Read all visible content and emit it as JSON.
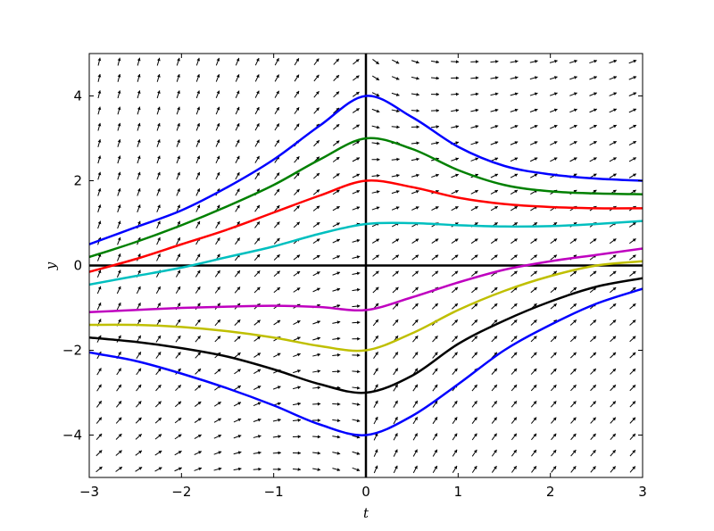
{
  "chart_data": {
    "type": "line",
    "title": "",
    "xlabel": "t",
    "ylabel": "y",
    "xlim": [
      -3,
      3
    ],
    "ylim": [
      -5,
      5
    ],
    "grid": false,
    "x_ticks": [
      -3,
      -2,
      -1,
      0,
      1,
      2,
      3
    ],
    "y_ticks": [
      -4,
      -2,
      0,
      2,
      4
    ],
    "x_tick_labels": [
      "−3",
      "−2",
      "−1",
      "0",
      "1",
      "2",
      "3"
    ],
    "y_tick_labels": [
      "−4",
      "−2",
      "0",
      "2",
      "4"
    ],
    "reference_lines": {
      "x": 0,
      "y": 0,
      "color": "#000000"
    },
    "direction_field": {
      "present": true,
      "t_range": [
        -3,
        3
      ],
      "y_range": [
        -5,
        5
      ],
      "arrow_color": "#000000"
    },
    "x": [
      -3,
      -2.5,
      -2,
      -1.5,
      -1,
      -0.5,
      0,
      0.5,
      1,
      1.5,
      2,
      2.5,
      3
    ],
    "series": [
      {
        "color": "#0000ff",
        "values": [
          0.5,
          0.9,
          1.3,
          1.85,
          2.5,
          3.3,
          4.0,
          3.5,
          2.8,
          2.35,
          2.15,
          2.05,
          2.0
        ]
      },
      {
        "color": "#008000",
        "values": [
          0.2,
          0.55,
          0.95,
          1.4,
          1.9,
          2.5,
          3.0,
          2.75,
          2.25,
          1.9,
          1.75,
          1.7,
          1.68
        ]
      },
      {
        "color": "#ff0000",
        "values": [
          -0.15,
          0.15,
          0.5,
          0.85,
          1.25,
          1.65,
          2.0,
          1.85,
          1.6,
          1.45,
          1.38,
          1.35,
          1.35
        ]
      },
      {
        "color": "#00bfbf",
        "values": [
          -0.45,
          -0.25,
          -0.05,
          0.2,
          0.45,
          0.75,
          0.98,
          1.0,
          0.95,
          0.92,
          0.93,
          0.98,
          1.05
        ]
      },
      {
        "color": "#bf00bf",
        "values": [
          -1.1,
          -1.05,
          -1.0,
          -0.97,
          -0.95,
          -0.98,
          -1.05,
          -0.75,
          -0.4,
          -0.1,
          0.1,
          0.25,
          0.4
        ]
      },
      {
        "color": "#bfbf00",
        "values": [
          -1.4,
          -1.4,
          -1.45,
          -1.55,
          -1.7,
          -1.9,
          -2.0,
          -1.6,
          -1.05,
          -0.6,
          -0.25,
          0.0,
          0.1
        ]
      },
      {
        "color": "#000000",
        "values": [
          -1.7,
          -1.8,
          -1.95,
          -2.15,
          -2.45,
          -2.8,
          -3.0,
          -2.6,
          -1.85,
          -1.3,
          -0.85,
          -0.5,
          -0.3
        ]
      },
      {
        "color": "#0000ff",
        "values": [
          -2.05,
          -2.25,
          -2.55,
          -2.9,
          -3.3,
          -3.75,
          -4.0,
          -3.55,
          -2.8,
          -2.0,
          -1.4,
          -0.9,
          -0.55
        ]
      }
    ]
  }
}
